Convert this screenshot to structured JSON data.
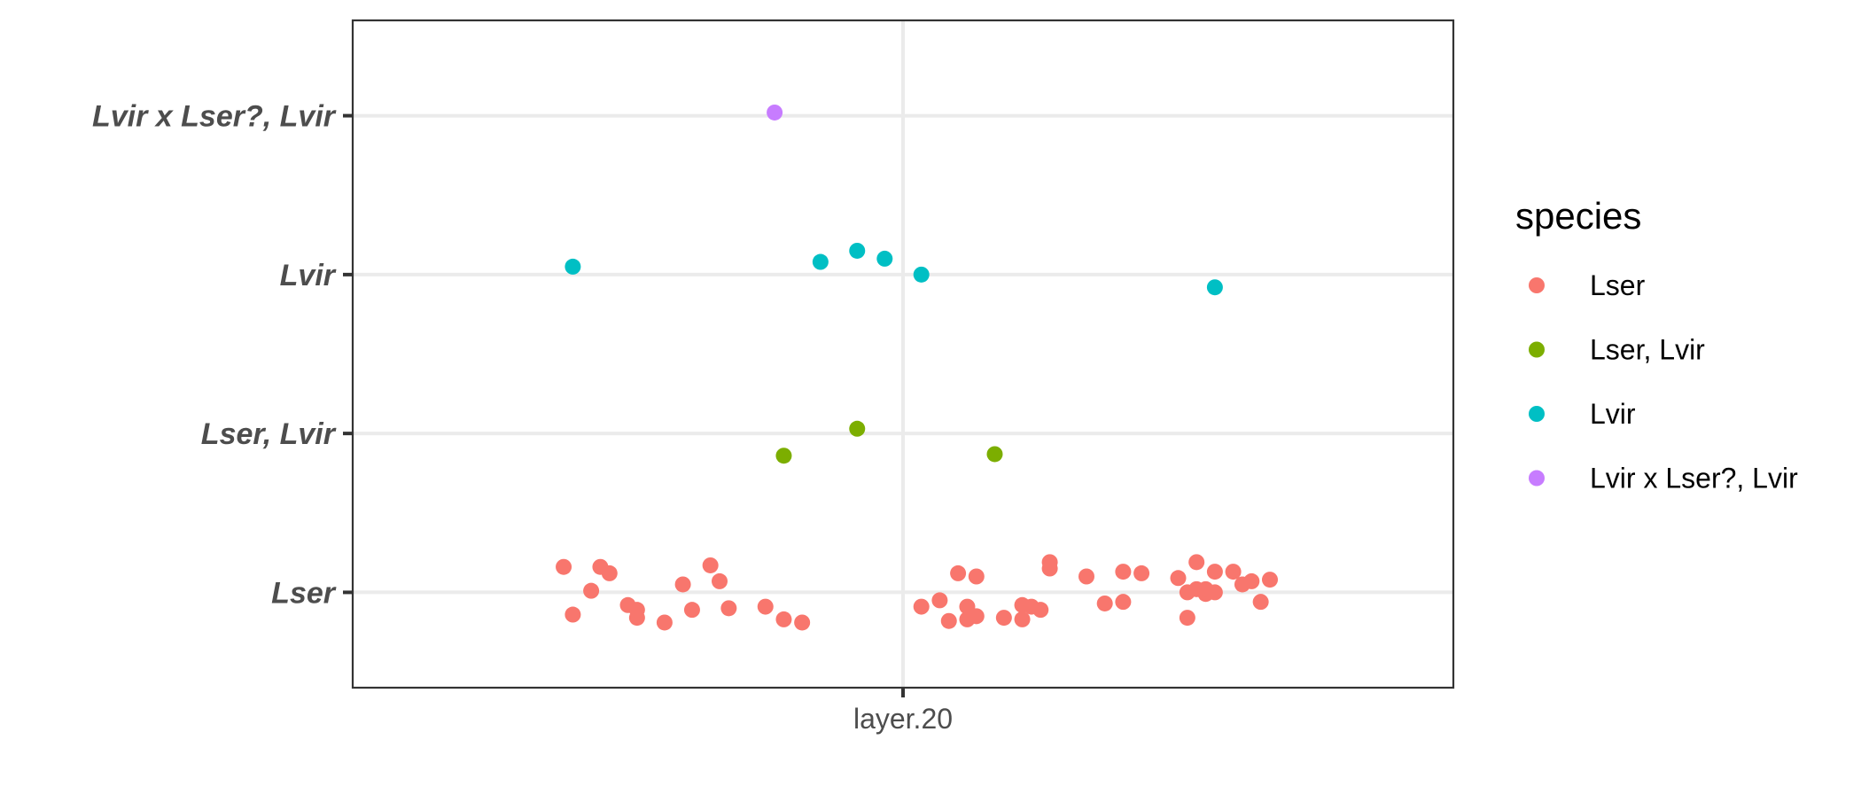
{
  "chart_data": {
    "type": "scatter",
    "title": "",
    "xlabel": "",
    "ylabel": "",
    "x_categories": [
      "layer.20"
    ],
    "y_categories": [
      "Lser",
      "Lser, Lvir",
      "Lvir",
      "Lvir x Lser?, Lvir"
    ],
    "grid": true,
    "legend": {
      "title": "species",
      "position": "right",
      "entries": [
        {
          "label": "Lser",
          "color": "#F8766D"
        },
        {
          "label": "Lser, Lvir",
          "color": "#7CAE00"
        },
        {
          "label": "Lvir",
          "color": "#00BFC4"
        },
        {
          "label": "Lvir x Lser?, Lvir",
          "color": "#C77CFF"
        }
      ]
    },
    "note_on_points": "jittered strip plot; each point stores its category plus horizontal and vertical jitter in category units",
    "series": [
      {
        "name": "Lser",
        "category": "Lser",
        "points": [
          [
            -0.37,
            0.16
          ],
          [
            -0.36,
            -0.14
          ],
          [
            -0.34,
            0.01
          ],
          [
            -0.33,
            0.16
          ],
          [
            -0.32,
            0.12
          ],
          [
            -0.3,
            -0.08
          ],
          [
            -0.29,
            -0.16
          ],
          [
            -0.29,
            -0.11
          ],
          [
            -0.26,
            -0.19
          ],
          [
            -0.24,
            0.05
          ],
          [
            -0.23,
            -0.11
          ],
          [
            -0.21,
            0.17
          ],
          [
            -0.2,
            0.07
          ],
          [
            -0.19,
            -0.1
          ],
          [
            -0.15,
            -0.09
          ],
          [
            -0.13,
            -0.17
          ],
          [
            -0.11,
            -0.19
          ],
          [
            0.02,
            -0.09
          ],
          [
            0.04,
            -0.05
          ],
          [
            0.05,
            -0.18
          ],
          [
            0.06,
            0.12
          ],
          [
            0.07,
            -0.17
          ],
          [
            0.07,
            -0.09
          ],
          [
            0.08,
            -0.15
          ],
          [
            0.08,
            0.1
          ],
          [
            0.11,
            -0.16
          ],
          [
            0.13,
            -0.17
          ],
          [
            0.13,
            -0.08
          ],
          [
            0.14,
            -0.09
          ],
          [
            0.15,
            -0.11
          ],
          [
            0.16,
            0.15
          ],
          [
            0.16,
            0.19
          ],
          [
            0.2,
            0.1
          ],
          [
            0.22,
            -0.07
          ],
          [
            0.24,
            0.13
          ],
          [
            0.24,
            -0.06
          ],
          [
            0.26,
            0.12
          ],
          [
            0.3,
            0.09
          ],
          [
            0.31,
            0.0
          ],
          [
            0.31,
            -0.16
          ],
          [
            0.32,
            0.02
          ],
          [
            0.32,
            0.19
          ],
          [
            0.33,
            -0.01
          ],
          [
            0.33,
            0.02
          ],
          [
            0.34,
            0.0
          ],
          [
            0.34,
            0.13
          ],
          [
            0.36,
            0.13
          ],
          [
            0.37,
            0.05
          ],
          [
            0.38,
            0.07
          ],
          [
            0.39,
            -0.06
          ],
          [
            0.4,
            0.08
          ]
        ]
      },
      {
        "name": "Lser, Lvir",
        "category": "Lser, Lvir",
        "points": [
          [
            -0.13,
            -0.14
          ],
          [
            -0.05,
            0.03
          ],
          [
            0.1,
            -0.13
          ]
        ]
      },
      {
        "name": "Lvir",
        "category": "Lvir",
        "points": [
          [
            -0.36,
            0.05
          ],
          [
            -0.09,
            0.08
          ],
          [
            -0.05,
            0.15
          ],
          [
            -0.02,
            0.1
          ],
          [
            0.02,
            0.0
          ],
          [
            0.34,
            -0.08
          ]
        ]
      },
      {
        "name": "Lvir x Lser?, Lvir",
        "category": "Lvir x Lser?, Lvir",
        "points": [
          [
            -0.14,
            0.02
          ]
        ]
      }
    ]
  }
}
